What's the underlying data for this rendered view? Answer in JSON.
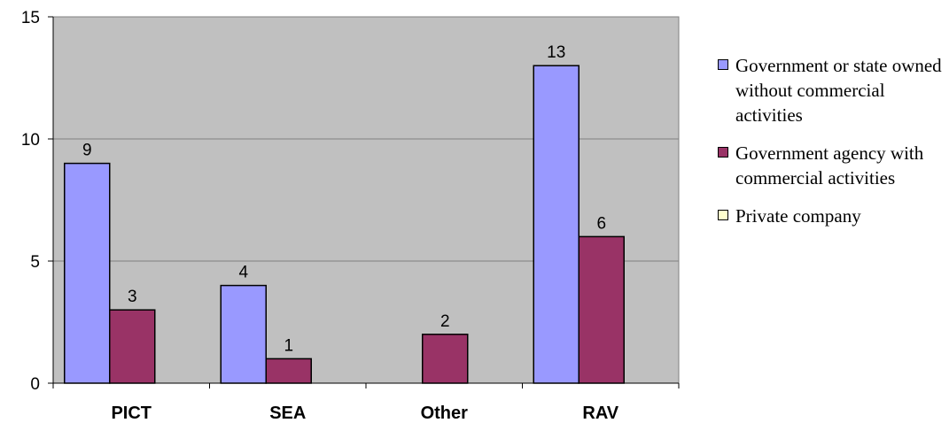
{
  "chart_data": {
    "type": "bar",
    "categories": [
      "PICT",
      "SEA",
      "Other",
      "RAV"
    ],
    "series": [
      {
        "name": "Government or state owned without commercial activities",
        "color": "#9999ff",
        "values": [
          9,
          4,
          0,
          13
        ],
        "labels": [
          "9",
          "4",
          "",
          "13"
        ]
      },
      {
        "name": "Government agency with commercial activities",
        "color": "#993366",
        "values": [
          3,
          1,
          2,
          6
        ],
        "labels": [
          "3",
          "1",
          "2",
          "6"
        ]
      },
      {
        "name": "Private company",
        "color": "#ffffcc",
        "values": [
          0,
          0,
          0,
          0
        ],
        "labels": [
          "",
          "",
          "",
          ""
        ]
      }
    ],
    "ylim": [
      0,
      15
    ],
    "yticks": [
      "0",
      "5",
      "10",
      "15"
    ],
    "plot_background": "#c0c0c0",
    "grid": true,
    "legend": "right"
  }
}
